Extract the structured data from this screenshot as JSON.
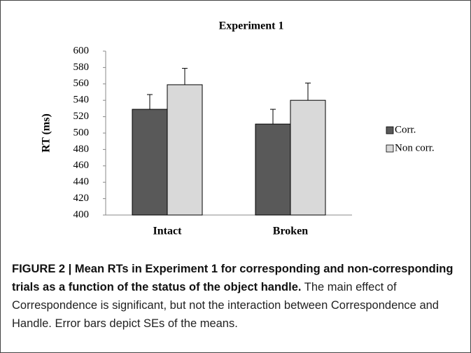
{
  "chart_data": {
    "type": "bar",
    "title": "Experiment 1",
    "y_label": "RT (ms)",
    "categories": [
      "Intact",
      "Broken"
    ],
    "series": [
      {
        "name": "Corr.",
        "color": "#595959",
        "values": [
          529,
          511
        ],
        "errors": [
          18,
          18
        ]
      },
      {
        "name": "Non corr.",
        "color": "#d9d9d9",
        "values": [
          559,
          540
        ],
        "errors": [
          20,
          21
        ]
      }
    ],
    "ylim": [
      400,
      600
    ],
    "yticks": [
      400,
      420,
      440,
      460,
      480,
      500,
      520,
      540,
      560,
      580,
      600
    ],
    "grid": false,
    "legend": "right"
  },
  "caption": {
    "label": "FIGURE 2 | Mean RTs in Experiment 1 for corresponding and non-corresponding trials as a function of the status of the object handle.",
    "text": "The main effect of Correspondence is significant, but not the interaction between Correspondence and Handle. Error bars depict SEs of the means."
  }
}
